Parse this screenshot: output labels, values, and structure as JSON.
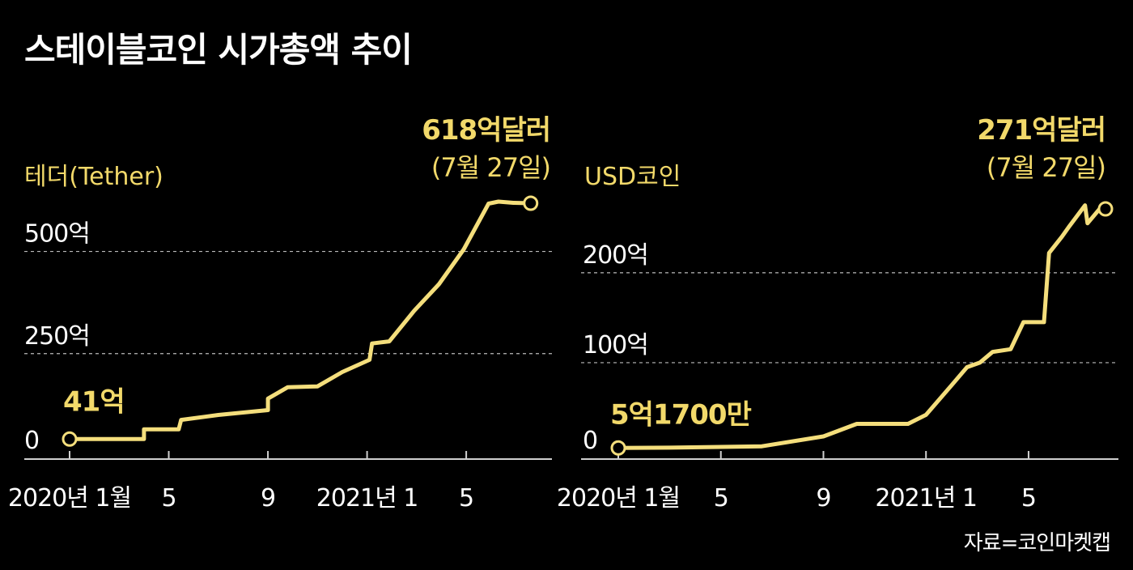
{
  "title": "스테이블코인 시가총액 추이",
  "source": "자료=코인마켓캡",
  "colors": {
    "line": "#f4de7c",
    "accent": "#f2d96a",
    "axis": "#cfcfcf",
    "grid": "#bbbbbb",
    "text": "#ffffff"
  },
  "chart_data": [
    {
      "type": "line",
      "series_label": "테더(Tether)",
      "xlim": [
        0,
        19
      ],
      "ylim": [
        0,
        618
      ],
      "x_ticks": [
        {
          "x": 0,
          "label": "2020년 1월"
        },
        {
          "x": 4,
          "label": "5"
        },
        {
          "x": 8,
          "label": "9"
        },
        {
          "x": 12,
          "label": "2021년 1"
        },
        {
          "x": 16,
          "label": "5"
        }
      ],
      "y_ticks": [
        {
          "value": 0,
          "label": "0",
          "grid": false
        },
        {
          "value": 250,
          "label": "250억",
          "grid": true
        },
        {
          "value": 500,
          "label": "500억",
          "grid": true
        }
      ],
      "series": [
        {
          "x": [
            0,
            1,
            2,
            3,
            3.0,
            4,
            4.4,
            4.5,
            6,
            8,
            8.0,
            8.8,
            10,
            11,
            12.1,
            12.2,
            12.9,
            13.9,
            14.9,
            15.9,
            16.9,
            17.3,
            17.9,
            18.6
          ],
          "y": [
            41,
            41,
            41,
            41,
            65,
            65,
            65,
            88,
            100,
            112,
            140,
            168,
            170,
            205,
            235,
            275,
            280,
            355,
            420,
            505,
            617,
            622,
            619,
            618
          ]
        }
      ],
      "annotations": [
        {
          "x": 0,
          "y": 41,
          "label": "41억"
        },
        {
          "x": 18.6,
          "y": 618,
          "label": "618억달러",
          "sublabel": "(7월 27일)"
        }
      ]
    },
    {
      "type": "line",
      "series_label": "USD코인",
      "xlim": [
        0,
        19
      ],
      "ylim": [
        0,
        271
      ],
      "x_ticks": [
        {
          "x": 0,
          "label": "2020년 1월"
        },
        {
          "x": 4,
          "label": "5"
        },
        {
          "x": 8,
          "label": "9"
        },
        {
          "x": 12,
          "label": "2021년 1"
        },
        {
          "x": 16,
          "label": "5"
        }
      ],
      "y_ticks": [
        {
          "value": 0,
          "label": "0",
          "grid": false
        },
        {
          "value": 100,
          "label": "100억",
          "grid": true
        },
        {
          "value": 200,
          "label": "200억",
          "grid": true
        }
      ],
      "series": [
        {
          "x": [
            0,
            2,
            5.6,
            8,
            9.3,
            11.3,
            12,
            13,
            13.6,
            14.1,
            14.6,
            15.3,
            15.8,
            16.6,
            16.8,
            17.3,
            17.6,
            18.2,
            18.3,
            18.8,
            18.9,
            19.0
          ],
          "y": [
            5.17,
            5.5,
            7,
            18,
            32,
            32,
            42,
            75,
            95,
            100,
            112,
            115,
            145,
            145,
            222,
            240,
            252,
            275,
            255,
            272,
            268,
            271
          ]
        }
      ],
      "annotations": [
        {
          "x": 0,
          "y": 5.17,
          "label": "5억1700만"
        },
        {
          "x": 19.0,
          "y": 271,
          "label": "271억달러",
          "sublabel": "(7월 27일)"
        }
      ]
    }
  ]
}
